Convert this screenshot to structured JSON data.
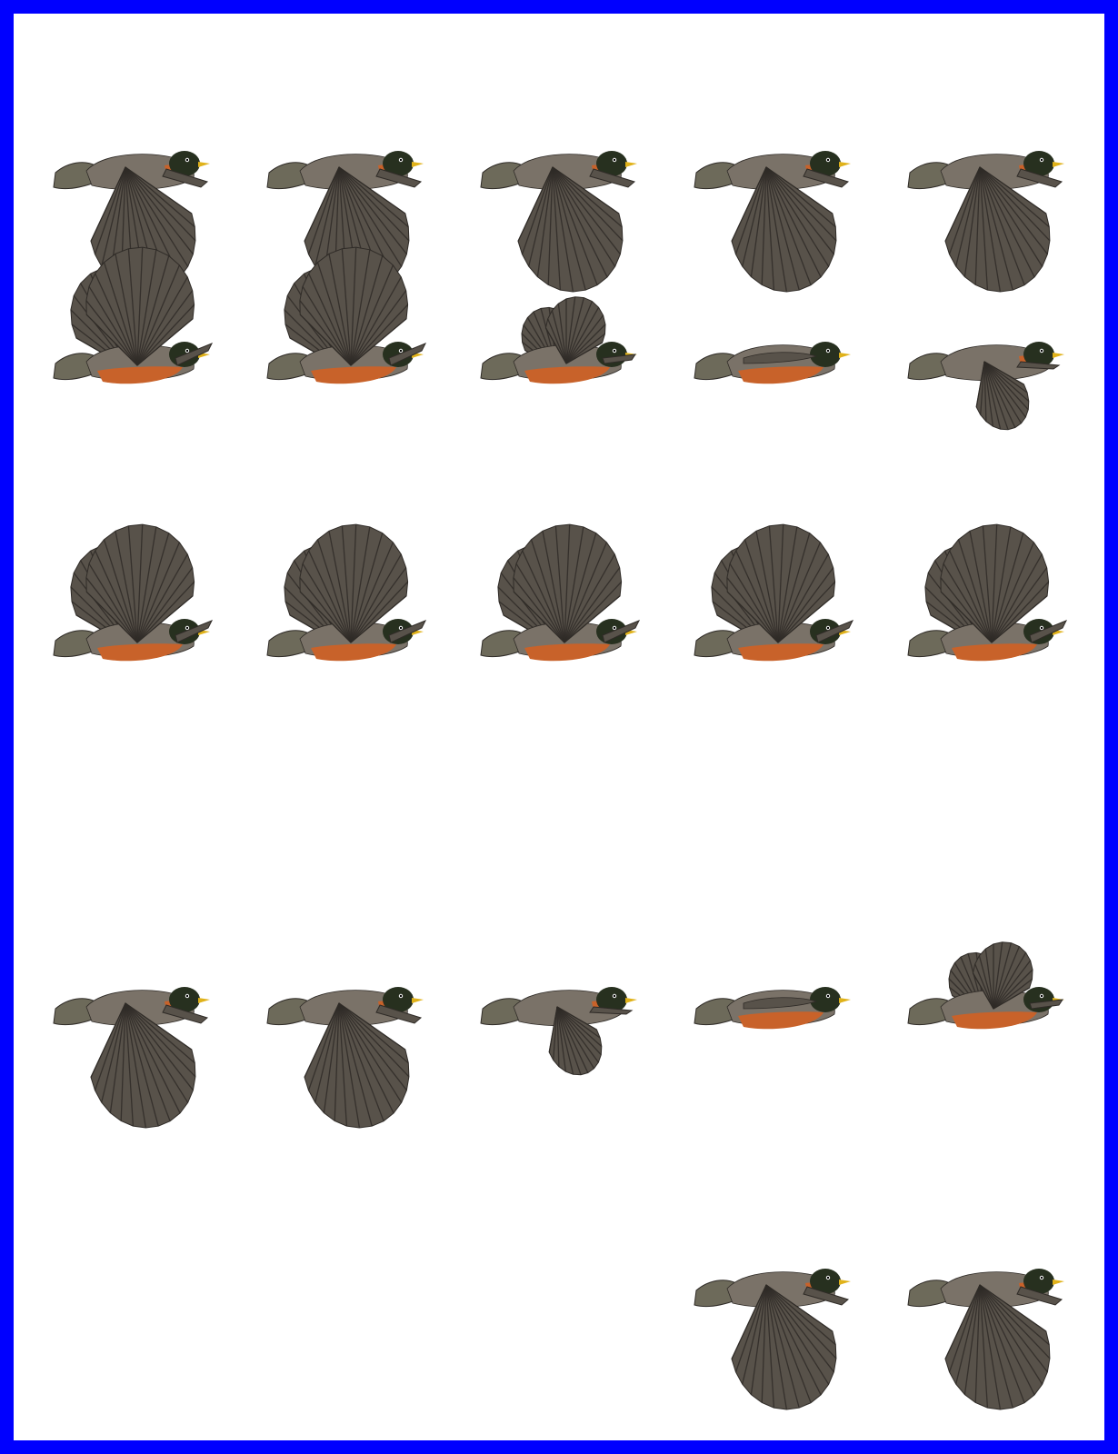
{
  "colors": {
    "border": "#0000ff",
    "background": "#ffffff",
    "wing": "#58524a",
    "feather_line": "#2f2b27",
    "back": "#7a7268",
    "head": "#27301f",
    "breast": "#c8622a",
    "beak": "#e0b21a",
    "tail": "#6d6a5a"
  },
  "sprite_sheet": {
    "subject": "robin-in-flight",
    "columns": 5,
    "rows": 5,
    "frame_count": 22,
    "frames": [
      {
        "row": 1,
        "col": 1,
        "pose": "wings-down",
        "breast_visible": false
      },
      {
        "row": 1,
        "col": 2,
        "pose": "wings-down",
        "breast_visible": false
      },
      {
        "row": 1,
        "col": 3,
        "pose": "wings-down",
        "breast_visible": false
      },
      {
        "row": 1,
        "col": 4,
        "pose": "wings-down",
        "breast_visible": false
      },
      {
        "row": 1,
        "col": 5,
        "pose": "wings-down",
        "breast_visible": false
      },
      {
        "row": 2,
        "col": 1,
        "pose": "wings-up",
        "breast_visible": true
      },
      {
        "row": 2,
        "col": 2,
        "pose": "wings-up",
        "breast_visible": true
      },
      {
        "row": 2,
        "col": 3,
        "pose": "wings-mid",
        "breast_visible": true
      },
      {
        "row": 2,
        "col": 4,
        "pose": "wings-folded",
        "breast_visible": true
      },
      {
        "row": 2,
        "col": 5,
        "pose": "wings-low",
        "breast_visible": false
      },
      {
        "row": 3,
        "col": 1,
        "pose": "wings-up",
        "breast_visible": true
      },
      {
        "row": 3,
        "col": 2,
        "pose": "wings-up",
        "breast_visible": true
      },
      {
        "row": 3,
        "col": 3,
        "pose": "wings-up",
        "breast_visible": true
      },
      {
        "row": 3,
        "col": 4,
        "pose": "wings-up",
        "breast_visible": true
      },
      {
        "row": 3,
        "col": 5,
        "pose": "wings-up",
        "breast_visible": true
      },
      {
        "row": 4,
        "col": 1,
        "pose": "wings-down",
        "breast_visible": false
      },
      {
        "row": 4,
        "col": 2,
        "pose": "wings-down",
        "breast_visible": false
      },
      {
        "row": 4,
        "col": 3,
        "pose": "wings-low",
        "breast_visible": false
      },
      {
        "row": 4,
        "col": 4,
        "pose": "wings-folded",
        "breast_visible": true
      },
      {
        "row": 4,
        "col": 5,
        "pose": "wings-mid",
        "breast_visible": true
      },
      {
        "row": 5,
        "col": 4,
        "pose": "wings-down",
        "breast_visible": false
      },
      {
        "row": 5,
        "col": 5,
        "pose": "wings-down",
        "breast_visible": false
      }
    ]
  }
}
